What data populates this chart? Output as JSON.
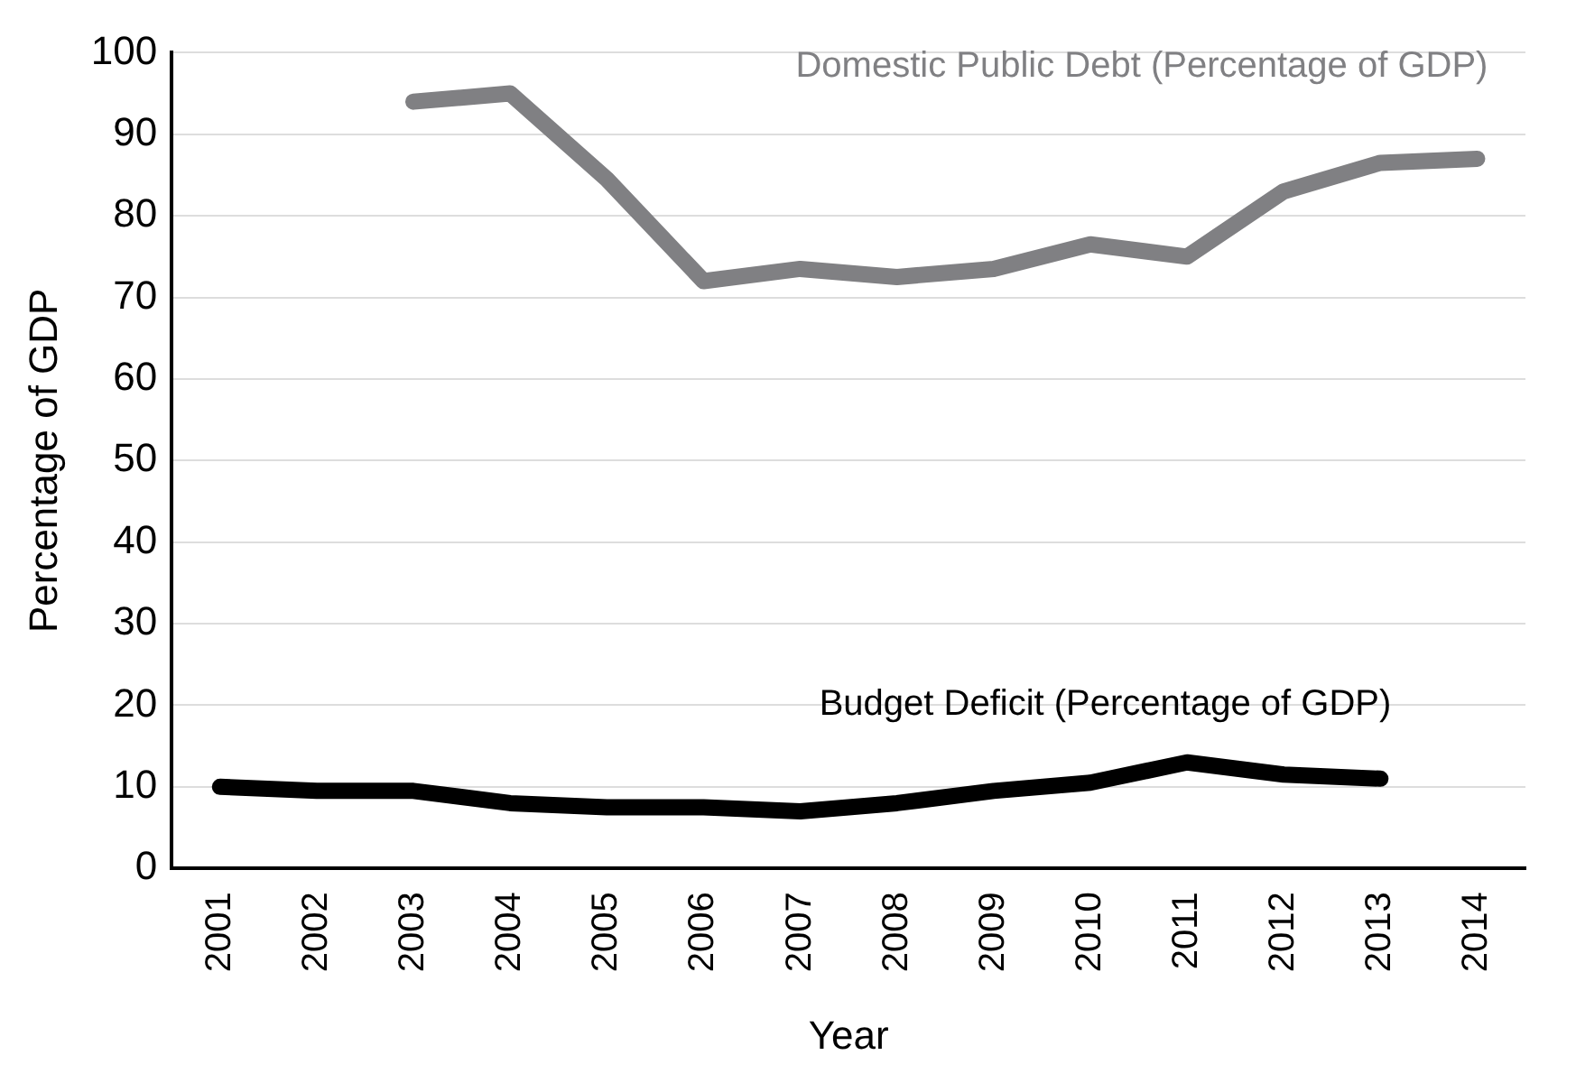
{
  "chart_data": {
    "type": "line",
    "xlabel": "Year",
    "ylabel": "Percentage of GDP",
    "categories": [
      "2001",
      "2002",
      "2003",
      "2004",
      "2005",
      "2006",
      "2007",
      "2008",
      "2009",
      "2010",
      "2011",
      "2012",
      "2013",
      "2014"
    ],
    "series": [
      {
        "name": "Domestic Public Debt (Percentage of GDP)",
        "color": "#808083",
        "values": [
          null,
          null,
          94,
          95,
          84.5,
          72,
          73.5,
          72.5,
          73.5,
          76.5,
          75,
          83,
          86.5,
          87
        ]
      },
      {
        "name": "Budget Deficit (Percentage of GDP)",
        "color": "#000000",
        "values": [
          10,
          9.5,
          9.5,
          8,
          7.5,
          7.5,
          7,
          8,
          9.5,
          10.5,
          13,
          11.5,
          11,
          null
        ]
      }
    ],
    "ylim": [
      0,
      100
    ],
    "yticks": [
      0,
      10,
      20,
      30,
      40,
      50,
      60,
      70,
      80,
      90,
      100
    ],
    "grid": "y",
    "legend": false,
    "marker": "none",
    "line_style": "solid"
  }
}
